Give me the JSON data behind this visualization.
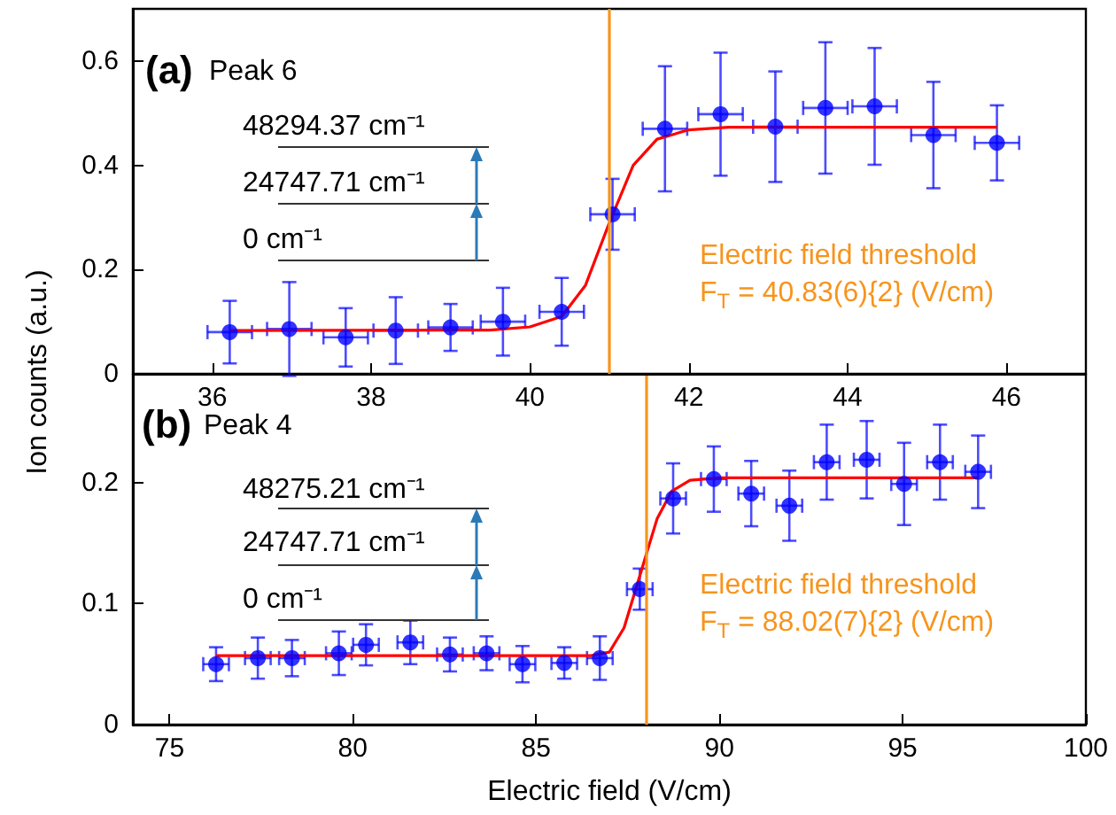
{
  "chart_data": [
    {
      "type": "scatter",
      "ylabel": "Ion counts (a.u.)",
      "xlim": [
        35,
        47
      ],
      "xticks": [
        36,
        38,
        40,
        42,
        44,
        46
      ],
      "ylim": [
        0,
        0.7
      ],
      "yticks": [
        0,
        0.2,
        0.4,
        0.6
      ],
      "grid": false,
      "annotations": [
        "(a)",
        "Peak 6",
        "48294.37 cm⁻¹",
        "24747.71 cm⁻¹",
        "0 cm⁻¹",
        "Electric field threshold",
        "F$_{T}$ = 40.83(6){2} (V/cm)"
      ],
      "ref_lines": [
        {
          "axis": "x",
          "value": 41.0,
          "color": "#f7941d"
        }
      ],
      "series": [
        {
          "marker": "circle",
          "color": "#0000ff",
          "x": [
            36.22,
            36.97,
            37.68,
            38.31,
            39.0,
            39.66,
            40.4,
            41.04,
            41.7,
            42.4,
            43.09,
            43.72,
            44.34,
            45.08,
            45.88
          ],
          "values": [
            0.08,
            0.086,
            0.07,
            0.083,
            0.089,
            0.1,
            0.119,
            0.306,
            0.47,
            0.498,
            0.474,
            0.51,
            0.513,
            0.458,
            0.443
          ],
          "errors": [
            0.06,
            0.09,
            0.056,
            0.064,
            0.045,
            0.065,
            0.065,
            0.068,
            0.12,
            0.118,
            0.106,
            0.126,
            0.112,
            0.102,
            0.072
          ],
          "xerrors": [
            0.28,
            0.28,
            0.28,
            0.28,
            0.28,
            0.28,
            0.28,
            0.28,
            0.28,
            0.28,
            0.28,
            0.28,
            0.28,
            0.28,
            0.28
          ]
        },
        {
          "type": "line",
          "marker": "none",
          "color": "#ff0000",
          "x": [
            36.22,
            39.5,
            40.0,
            40.4,
            40.7,
            41.0,
            41.3,
            41.6,
            42.0,
            42.5,
            45.88
          ],
          "values": [
            0.083,
            0.084,
            0.09,
            0.11,
            0.17,
            0.29,
            0.4,
            0.45,
            0.468,
            0.473,
            0.473
          ]
        }
      ]
    },
    {
      "type": "scatter",
      "xlabel": "Electric field (V/cm)",
      "xlim": [
        74,
        100
      ],
      "xticks": [
        75,
        80,
        85,
        90,
        95,
        100
      ],
      "ylim": [
        0,
        0.29
      ],
      "yticks": [
        0,
        0.1,
        0.2
      ],
      "grid": false,
      "annotations": [
        "(b)",
        "Peak 4",
        "48275.21 cm⁻¹",
        "24747.71 cm⁻¹",
        "0 cm⁻¹",
        "Electric field threshold",
        "F$_{T}$ = 88.02(7){2} (V/cm)"
      ],
      "ref_lines": [
        {
          "axis": "x",
          "value": 88.02,
          "color": "#f7941d"
        }
      ],
      "series": [
        {
          "marker": "circle",
          "color": "#0000ff",
          "x": [
            76.27,
            77.41,
            78.34,
            79.62,
            80.36,
            81.57,
            82.65,
            83.65,
            84.63,
            85.77,
            86.74,
            87.83,
            88.74,
            89.85,
            90.87,
            91.91,
            92.93,
            94.02,
            95.04,
            96.02,
            97.06
          ],
          "values": [
            0.05,
            0.055,
            0.055,
            0.059,
            0.066,
            0.068,
            0.058,
            0.059,
            0.05,
            0.051,
            0.055,
            0.112,
            0.187,
            0.203,
            0.191,
            0.181,
            0.217,
            0.219,
            0.199,
            0.217,
            0.209
          ],
          "errors": [
            0.014,
            0.017,
            0.015,
            0.018,
            0.017,
            0.018,
            0.014,
            0.014,
            0.015,
            0.013,
            0.018,
            0.017,
            0.029,
            0.027,
            0.027,
            0.029,
            0.031,
            0.032,
            0.034,
            0.031,
            0.03
          ],
          "xerrors": [
            0.35,
            0.35,
            0.35,
            0.35,
            0.35,
            0.35,
            0.35,
            0.35,
            0.35,
            0.35,
            0.35,
            0.35,
            0.35,
            0.35,
            0.35,
            0.35,
            0.35,
            0.35,
            0.35,
            0.35,
            0.35
          ]
        },
        {
          "type": "line",
          "marker": "none",
          "color": "#ff0000",
          "x": [
            76.27,
            86.5,
            87.0,
            87.4,
            87.7,
            88.0,
            88.3,
            88.7,
            89.2,
            90.0,
            97.06
          ],
          "values": [
            0.057,
            0.057,
            0.06,
            0.08,
            0.11,
            0.14,
            0.17,
            0.193,
            0.202,
            0.204,
            0.204
          ]
        }
      ]
    }
  ]
}
